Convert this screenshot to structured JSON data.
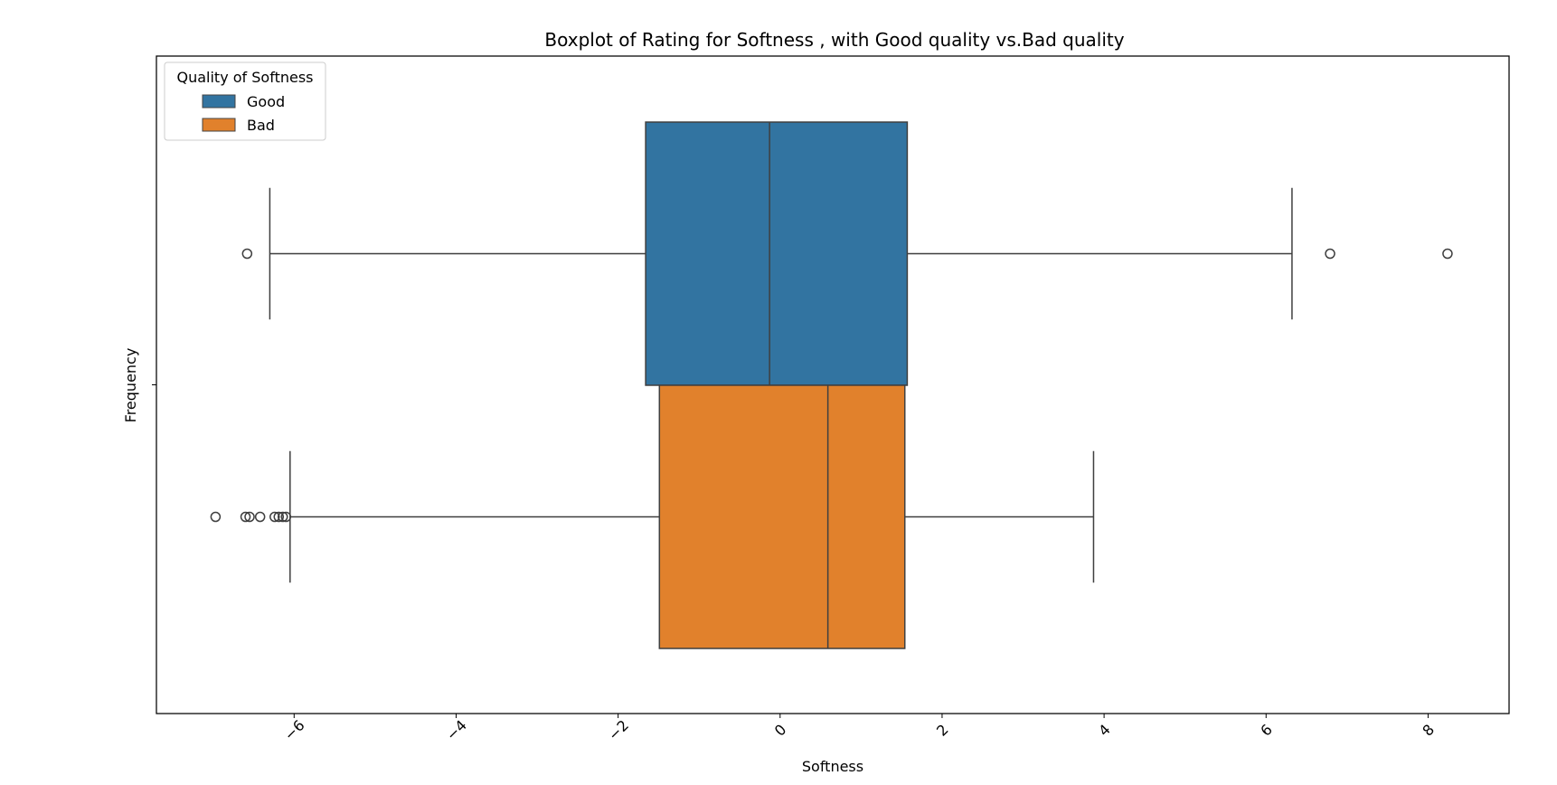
{
  "chart_data": {
    "type": "boxplot",
    "title": "Boxplot of Rating for Softness , with Good quality vs.Bad quality",
    "xlabel": "Softness",
    "ylabel": "Frequency",
    "xlim": [
      -7.7,
      9.0
    ],
    "x_ticks": [
      -6,
      -4,
      -2,
      0,
      2,
      4,
      6,
      8
    ],
    "x_tick_labels": [
      "−6",
      "−4",
      "−2",
      "0",
      "2",
      "4",
      "6",
      "8"
    ],
    "x_tick_rotation": -45,
    "y_tick_count": 1,
    "orientation": "horizontal",
    "grid": false,
    "legend": {
      "title": "Quality of Softness",
      "placement": "top-left",
      "entries": [
        "Good",
        "Bad"
      ]
    },
    "series": [
      {
        "name": "Good",
        "color": "#3274a1",
        "whisker_low": -6.3,
        "q1": -1.66,
        "median": -0.13,
        "q3": 1.57,
        "whisker_high": 6.32,
        "outliers": [
          -6.58,
          6.79,
          8.24
        ]
      },
      {
        "name": "Bad",
        "color": "#e1812c",
        "whisker_low": -6.05,
        "q1": -1.49,
        "median": 0.59,
        "q3": 1.54,
        "whisker_high": 3.87,
        "outliers": [
          -6.97,
          -6.6,
          -6.55,
          -6.42,
          -6.24,
          -6.19,
          -6.14,
          -6.1
        ]
      }
    ]
  }
}
